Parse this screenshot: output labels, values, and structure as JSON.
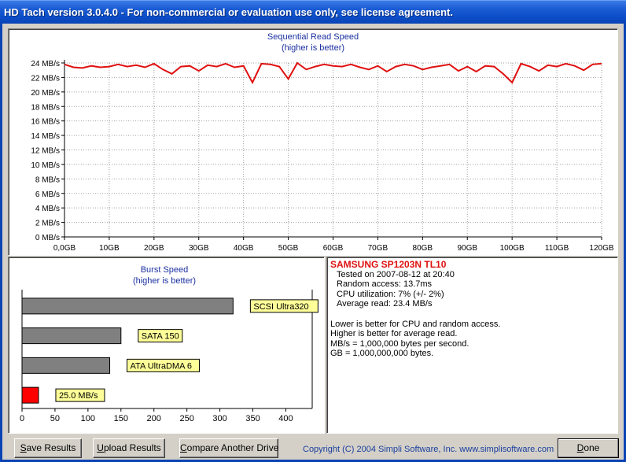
{
  "window": {
    "title": "HD Tach version 3.0.4.0  - For non-commercial or evaluation use only, see license agreement."
  },
  "chart_data": [
    {
      "type": "line",
      "title": "Sequential Read Speed",
      "subtitle": "(higher is better)",
      "ylim": [
        0,
        24
      ],
      "xlim": [
        0,
        120
      ],
      "y_ticks": [
        "0 MB/s",
        "2 MB/s",
        "4 MB/s",
        "6 MB/s",
        "8 MB/s",
        "10 MB/s",
        "12 MB/s",
        "14 MB/s",
        "16 MB/s",
        "18 MB/s",
        "20 MB/s",
        "22 MB/s",
        "24 MB/s"
      ],
      "x_ticks": [
        "0,0GB",
        "10GB",
        "20GB",
        "30GB",
        "40GB",
        "50GB",
        "60GB",
        "70GB",
        "80GB",
        "90GB",
        "100GB",
        "110GB",
        "120GB"
      ],
      "grid": true,
      "line_color": "#e01010",
      "series": [
        {
          "x": [
            0,
            2,
            4,
            6,
            8,
            10,
            12,
            14,
            16,
            18,
            20,
            22,
            24,
            26,
            28,
            30,
            32,
            34,
            36,
            38,
            40,
            42,
            44,
            46,
            48,
            50,
            52,
            54,
            56,
            58,
            60,
            62,
            64,
            66,
            68,
            70,
            72,
            74,
            76,
            78,
            80,
            82,
            84,
            86,
            88,
            90,
            92,
            94,
            96,
            98,
            100,
            102,
            104,
            106,
            108,
            110,
            112,
            114,
            116,
            118,
            120
          ],
          "y": [
            23.8,
            23.4,
            23.3,
            23.6,
            23.4,
            23.5,
            23.8,
            23.5,
            23.7,
            23.4,
            23.9,
            23.1,
            22.5,
            23.5,
            23.6,
            22.9,
            23.7,
            23.5,
            23.9,
            23.4,
            23.6,
            21.3,
            23.9,
            23.8,
            23.5,
            21.8,
            24,
            23.1,
            23.5,
            23.8,
            23.6,
            23.5,
            23.8,
            23.4,
            23.1,
            23.6,
            22.8,
            23.5,
            23.8,
            23.6,
            23.1,
            23.4,
            23.6,
            23.8,
            22.9,
            23.5,
            22.8,
            23.6,
            23.5,
            22.5,
            21.3,
            23.9,
            23.5,
            22.9,
            23.7,
            23.5,
            23.9,
            23.6,
            23,
            23.8,
            23.9
          ]
        }
      ]
    },
    {
      "type": "bar",
      "orientation": "horizontal",
      "title": "Burst Speed",
      "subtitle": "(higher is better)",
      "xlim": [
        0,
        440
      ],
      "x_ticks": [
        "0",
        "50",
        "100",
        "150",
        "200",
        "250",
        "300",
        "350",
        "400"
      ],
      "categories": [
        "SCSI Ultra320",
        "SATA 150",
        "ATA UltraDMA 6",
        "25.0 MB/s"
      ],
      "values": [
        320,
        150,
        133,
        25
      ],
      "colors": [
        "#808080",
        "#808080",
        "#808080",
        "#ff0000"
      ],
      "label_color": "#ffff99"
    }
  ],
  "info": {
    "drive": "SAMSUNG SP1203N TL10",
    "tested": "Tested on 2007-08-12 at 20:40",
    "random_access": "Random access: 13.7ms",
    "cpu": "CPU utilization: 7% (+/- 2%)",
    "avg_read": "Average read: 23.4 MB/s",
    "note1": "Lower is better for CPU and random access.",
    "note2": "Higher is better for average read.",
    "note3": "MB/s = 1,000,000 bytes per second.",
    "note4": "GB = 1,000,000,000 bytes."
  },
  "buttons": {
    "save": {
      "mnemonic": "S",
      "rest": "ave Results"
    },
    "upload": {
      "mnemonic": "U",
      "rest": "pload Results"
    },
    "compare": {
      "mnemonic": "C",
      "rest": "ompare Another Drive"
    },
    "done": {
      "mnemonic": "D",
      "rest": "one"
    }
  },
  "copyright": "Copyright (C) 2004 Simpli Software, Inc. www.simplisoftware.com"
}
